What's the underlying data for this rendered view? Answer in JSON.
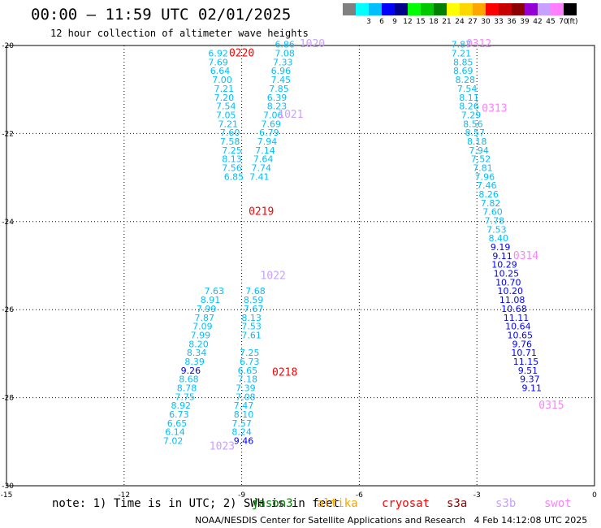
{
  "header": {
    "title": "00:00 – 11:59 UTC 02/01/2025",
    "subtitle": "12 hour collection of altimeter wave heights"
  },
  "legend": {
    "unit": "(ft)",
    "bins": [
      {
        "label": "",
        "color": "#808080"
      },
      {
        "label": "3",
        "color": "#00ffff"
      },
      {
        "label": "6",
        "color": "#00bfff"
      },
      {
        "label": "9",
        "color": "#0000ff"
      },
      {
        "label": "12",
        "color": "#00008b"
      },
      {
        "label": "15",
        "color": "#00ff00"
      },
      {
        "label": "18",
        "color": "#00c800"
      },
      {
        "label": "21",
        "color": "#008000"
      },
      {
        "label": "24",
        "color": "#ffff00"
      },
      {
        "label": "27",
        "color": "#ffd700"
      },
      {
        "label": "30",
        "color": "#ffa500"
      },
      {
        "label": "33",
        "color": "#ff0000"
      },
      {
        "label": "36",
        "color": "#c80000"
      },
      {
        "label": "39",
        "color": "#8b0000"
      },
      {
        "label": "42",
        "color": "#9400d3"
      },
      {
        "label": "45",
        "color": "#c8a0ff"
      },
      {
        "label": "70",
        "color": "#ff80ff"
      },
      {
        "label": "",
        "color": "#000000"
      }
    ]
  },
  "footer": {
    "note": "note: 1) Time is in UTC; 2) SWH is in feet",
    "satellites": [
      {
        "name": "jason3",
        "color": "#008000"
      },
      {
        "name": "altika",
        "color": "#ffa500"
      },
      {
        "name": "cryosat",
        "color": "#ff0000"
      },
      {
        "name": "s3a",
        "color": "#8b0000"
      },
      {
        "name": "s3b",
        "color": "#c8a0ff"
      },
      {
        "name": "swot",
        "color": "#ff80ff"
      }
    ],
    "credit": "NOAA/NESDIS Center for Satellite Applications and Research",
    "timestamp": "4 Feb 14:12:08 UTC 2025"
  },
  "chart_data": {
    "type": "scatter",
    "xlim": [
      -15,
      0
    ],
    "ylim": [
      -30,
      -20
    ],
    "xticks": [
      -15,
      -12,
      -9,
      -6,
      -3,
      0
    ],
    "yticks": [
      -20,
      -22,
      -24,
      -26,
      -28,
      -30
    ],
    "grid": true,
    "palette": {
      "cyan": "#00bfff",
      "blue": "#0000ff",
      "red": "#ff0000",
      "pink": "#ff80ff",
      "lilac": "#c8a0ff"
    },
    "pass_labels": [
      {
        "text": "1020",
        "x": -7.2,
        "y": -20.04,
        "color": "#c8a0ff"
      },
      {
        "text": "1021",
        "x": -7.75,
        "y": -21.64,
        "color": "#c8a0ff"
      },
      {
        "text": "1022",
        "x": -8.2,
        "y": -25.3,
        "color": "#c8a0ff"
      },
      {
        "text": "1023",
        "x": -9.5,
        "y": -29.18,
        "color": "#c8a0ff"
      },
      {
        "text": "0220",
        "x": -9.0,
        "y": -20.25,
        "color": "#ff0000"
      },
      {
        "text": "0219",
        "x": -8.5,
        "y": -23.85,
        "color": "#ff0000"
      },
      {
        "text": "0218",
        "x": -7.9,
        "y": -27.5,
        "color": "#ff0000"
      },
      {
        "text": "0312",
        "x": -2.95,
        "y": -20.04,
        "color": "#ff80ff"
      },
      {
        "text": "0313",
        "x": -2.55,
        "y": -21.5,
        "color": "#ff80ff"
      },
      {
        "text": "0314",
        "x": -1.75,
        "y": -24.85,
        "color": "#ff80ff"
      },
      {
        "text": "0315",
        "x": -1.1,
        "y": -28.25,
        "color": "#ff80ff"
      }
    ],
    "series": [
      {
        "color": "cyan",
        "points": [
          {
            "x": -9.6,
            "y": -20.25,
            "v": "6.92"
          },
          {
            "x": -9.6,
            "y": -20.45,
            "v": "7.69"
          },
          {
            "x": -9.55,
            "y": -20.65,
            "v": "6.64"
          },
          {
            "x": -9.5,
            "y": -20.85,
            "v": "7.00"
          },
          {
            "x": -9.45,
            "y": -21.05,
            "v": "7.21"
          },
          {
            "x": -9.45,
            "y": -21.25,
            "v": "7.20"
          },
          {
            "x": -9.4,
            "y": -21.45,
            "v": "7.54"
          },
          {
            "x": -9.4,
            "y": -21.65,
            "v": "7.05"
          },
          {
            "x": -9.35,
            "y": -21.85,
            "v": "7.21"
          },
          {
            "x": -9.3,
            "y": -22.05,
            "v": "7.60"
          },
          {
            "x": -9.3,
            "y": -22.25,
            "v": "7.58"
          },
          {
            "x": -9.25,
            "y": -22.45,
            "v": "7.25"
          },
          {
            "x": -9.25,
            "y": -22.65,
            "v": "8.13"
          },
          {
            "x": -9.25,
            "y": -22.85,
            "v": "7.56"
          },
          {
            "x": -9.2,
            "y": -23.05,
            "v": "6.85"
          },
          {
            "x": -9.7,
            "y": -25.65,
            "v": "7.63"
          },
          {
            "x": -9.8,
            "y": -25.85,
            "v": "8.91"
          },
          {
            "x": -9.9,
            "y": -26.05,
            "v": "7.99"
          },
          {
            "x": -9.95,
            "y": -26.25,
            "v": "7.87"
          },
          {
            "x": -10.0,
            "y": -26.45,
            "v": "7.09"
          },
          {
            "x": -10.05,
            "y": -26.65,
            "v": "7.99"
          },
          {
            "x": -10.1,
            "y": -26.85,
            "v": "8.20"
          },
          {
            "x": -10.15,
            "y": -27.05,
            "v": "8.34"
          },
          {
            "x": -10.2,
            "y": -27.25,
            "v": "8.39"
          },
          {
            "x": -10.35,
            "y": -27.65,
            "v": "8.68"
          },
          {
            "x": -10.4,
            "y": -27.85,
            "v": "8.78"
          },
          {
            "x": -10.45,
            "y": -28.05,
            "v": "7.75"
          },
          {
            "x": -10.55,
            "y": -28.25,
            "v": "8.92"
          },
          {
            "x": -10.6,
            "y": -28.45,
            "v": "6.73"
          },
          {
            "x": -10.65,
            "y": -28.65,
            "v": "6.65"
          },
          {
            "x": -10.7,
            "y": -28.85,
            "v": "6.14"
          },
          {
            "x": -10.75,
            "y": -29.05,
            "v": "7.02"
          },
          {
            "x": -7.9,
            "y": -20.05,
            "v": "6.86"
          },
          {
            "x": -7.9,
            "y": -20.25,
            "v": "7.08"
          },
          {
            "x": -7.95,
            "y": -20.45,
            "v": "7.33"
          },
          {
            "x": -8.0,
            "y": -20.65,
            "v": "6.96"
          },
          {
            "x": -8.0,
            "y": -20.85,
            "v": "7.45"
          },
          {
            "x": -8.05,
            "y": -21.05,
            "v": "7.85"
          },
          {
            "x": -8.1,
            "y": -21.25,
            "v": "6.39"
          },
          {
            "x": -8.1,
            "y": -21.45,
            "v": "8.23"
          },
          {
            "x": -8.2,
            "y": -21.65,
            "v": "7.06"
          },
          {
            "x": -8.25,
            "y": -21.85,
            "v": "7.69"
          },
          {
            "x": -8.3,
            "y": -22.05,
            "v": "6.79"
          },
          {
            "x": -8.35,
            "y": -22.25,
            "v": "7.94"
          },
          {
            "x": -8.4,
            "y": -22.45,
            "v": "7.14"
          },
          {
            "x": -8.45,
            "y": -22.65,
            "v": "7.64"
          },
          {
            "x": -8.5,
            "y": -22.85,
            "v": "7.74"
          },
          {
            "x": -8.55,
            "y": -23.05,
            "v": "7.41"
          },
          {
            "x": -8.65,
            "y": -25.65,
            "v": "7.68"
          },
          {
            "x": -8.7,
            "y": -25.85,
            "v": "8.59"
          },
          {
            "x": -8.7,
            "y": -26.05,
            "v": "7.67"
          },
          {
            "x": -8.75,
            "y": -26.25,
            "v": "8.13"
          },
          {
            "x": -8.75,
            "y": -26.45,
            "v": "7.53"
          },
          {
            "x": -8.75,
            "y": -26.65,
            "v": "7.61"
          },
          {
            "x": -8.8,
            "y": -27.05,
            "v": "7.25"
          },
          {
            "x": -8.8,
            "y": -27.25,
            "v": "6.73"
          },
          {
            "x": -8.85,
            "y": -27.45,
            "v": "6.65"
          },
          {
            "x": -8.85,
            "y": -27.65,
            "v": "7.18"
          },
          {
            "x": -8.9,
            "y": -27.85,
            "v": "7.39"
          },
          {
            "x": -8.9,
            "y": -28.05,
            "v": "7.08"
          },
          {
            "x": -8.95,
            "y": -28.25,
            "v": "7.47"
          },
          {
            "x": -8.95,
            "y": -28.45,
            "v": "8.10"
          },
          {
            "x": -9.0,
            "y": -28.65,
            "v": "7.57"
          },
          {
            "x": -9.0,
            "y": -28.85,
            "v": "8.24"
          },
          {
            "x": -3.4,
            "y": -20.05,
            "v": "7.87"
          },
          {
            "x": -3.4,
            "y": -20.25,
            "v": "7.21"
          },
          {
            "x": -3.35,
            "y": -20.45,
            "v": "8.85"
          },
          {
            "x": -3.35,
            "y": -20.65,
            "v": "8.69"
          },
          {
            "x": -3.3,
            "y": -20.85,
            "v": "8.28"
          },
          {
            "x": -3.25,
            "y": -21.05,
            "v": "7.54"
          },
          {
            "x": -3.2,
            "y": -21.25,
            "v": "8.11"
          },
          {
            "x": -3.2,
            "y": -21.45,
            "v": "8.26"
          },
          {
            "x": -3.15,
            "y": -21.65,
            "v": "7.29"
          },
          {
            "x": -3.1,
            "y": -21.85,
            "v": "8.56"
          },
          {
            "x": -3.05,
            "y": -22.05,
            "v": "8.57"
          },
          {
            "x": -3.0,
            "y": -22.25,
            "v": "8.18"
          },
          {
            "x": -2.95,
            "y": -22.45,
            "v": "7.94"
          },
          {
            "x": -2.9,
            "y": -22.65,
            "v": "7.52"
          },
          {
            "x": -2.85,
            "y": -22.85,
            "v": "7.81"
          },
          {
            "x": -2.8,
            "y": -23.05,
            "v": "7.96"
          },
          {
            "x": -2.75,
            "y": -23.25,
            "v": "7.46"
          },
          {
            "x": -2.7,
            "y": -23.45,
            "v": "8.26"
          },
          {
            "x": -2.65,
            "y": -23.65,
            "v": "7.82"
          },
          {
            "x": -2.6,
            "y": -23.85,
            "v": "7.60"
          },
          {
            "x": -2.55,
            "y": -24.05,
            "v": "7.78"
          },
          {
            "x": -2.5,
            "y": -24.25,
            "v": "7.53"
          },
          {
            "x": -2.45,
            "y": -24.45,
            "v": "8.40"
          }
        ]
      },
      {
        "color": "blue",
        "points": [
          {
            "x": -10.3,
            "y": -27.45,
            "v": "9.26"
          },
          {
            "x": -8.95,
            "y": -29.05,
            "v": "9.46"
          },
          {
            "x": -2.4,
            "y": -24.65,
            "v": "9.19"
          },
          {
            "x": -2.35,
            "y": -24.85,
            "v": "9.11"
          },
          {
            "x": -2.3,
            "y": -25.05,
            "v": "10.29"
          },
          {
            "x": -2.25,
            "y": -25.25,
            "v": "10.25"
          },
          {
            "x": -2.2,
            "y": -25.45,
            "v": "10.70"
          },
          {
            "x": -2.15,
            "y": -25.65,
            "v": "10.20"
          },
          {
            "x": -2.1,
            "y": -25.85,
            "v": "11.08"
          },
          {
            "x": -2.05,
            "y": -26.05,
            "v": "10.68"
          },
          {
            "x": -2.0,
            "y": -26.25,
            "v": "11.11"
          },
          {
            "x": -1.95,
            "y": -26.45,
            "v": "10.64"
          },
          {
            "x": -1.9,
            "y": -26.65,
            "v": "10.65"
          },
          {
            "x": -1.85,
            "y": -26.85,
            "v": "9.76"
          },
          {
            "x": -1.8,
            "y": -27.05,
            "v": "10.71"
          },
          {
            "x": -1.75,
            "y": -27.25,
            "v": "11.15"
          },
          {
            "x": -1.7,
            "y": -27.45,
            "v": "9.51"
          },
          {
            "x": -1.65,
            "y": -27.65,
            "v": "9.37"
          },
          {
            "x": -1.6,
            "y": -27.85,
            "v": "9.11"
          }
        ]
      }
    ]
  }
}
